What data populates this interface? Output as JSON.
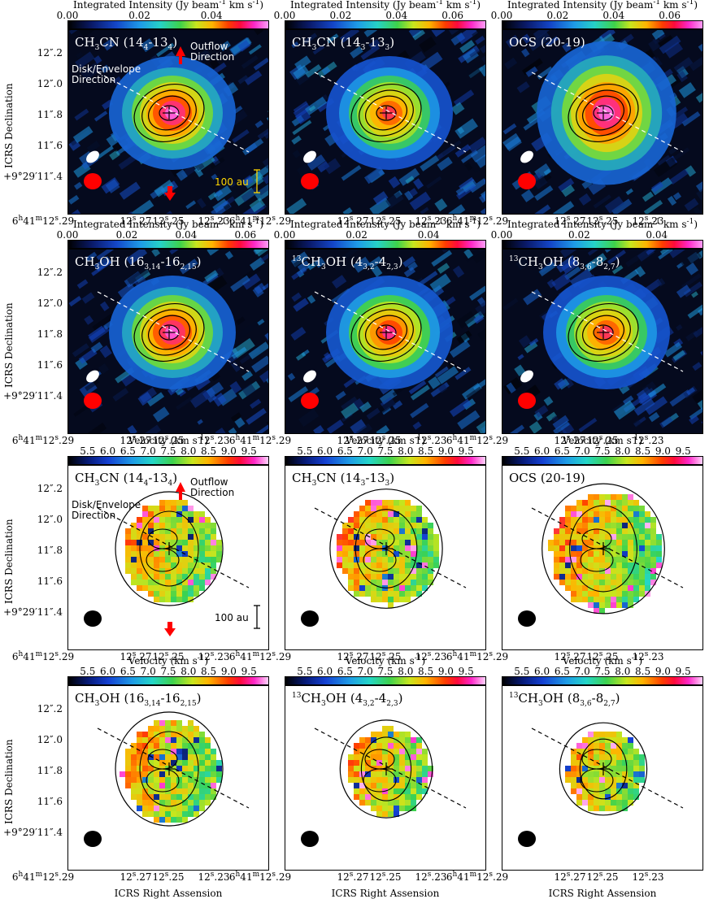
{
  "figure": {
    "colorbar_intensity_title": "Integrated Intensity (Jy beam-1 km s-1)",
    "colorbar_velocity_title": "Velocity (km s-1)",
    "xlabel": "ICRS Right Assension",
    "ylabel": "ICRS Declination",
    "x_ticks": [
      "6h41m12s.29",
      "12s.27",
      "12s.25",
      "12s.23"
    ],
    "y_ticks_top": [
      "12″.2",
      "12″.0",
      "11″.8",
      "11″.6",
      "+9°29′11″.4"
    ],
    "annotations": {
      "outflow": "Outflow Direction",
      "disk": "Disk/Envelope Direction",
      "scale": "100 au"
    },
    "colors": {
      "intensity_cmap": [
        "#000000",
        "#1446c8",
        "#1e9be6",
        "#3ed24a",
        "#c8e61e",
        "#ffb400",
        "#ff3c00",
        "#ff28c8",
        "#ff9cf4"
      ],
      "velocity_cmap": [
        "#000000",
        "#1440d2",
        "#24d6c8",
        "#3cd24e",
        "#c8e61e",
        "#ffb400",
        "#ff3c00",
        "#ff28c8",
        "#ffd2fa"
      ],
      "beam_synth": "#ff0000",
      "arrow": "#ff0000"
    }
  },
  "chart_data": [
    {
      "type": "heatmap",
      "panel": "moment0",
      "title": "CH3CN (144-134)",
      "colorbar": {
        "label": "Integrated Intensity (Jy beam-1 km s-1)",
        "ticks": [
          0.0,
          0.02,
          0.04
        ],
        "range": [
          0.0,
          0.056
        ]
      },
      "peak_intensity": 0.05,
      "extent": "0.5 x 0.45"
    },
    {
      "type": "heatmap",
      "panel": "moment0",
      "title": "CH3CN (143-133)",
      "colorbar": {
        "label": "Integrated Intensity (Jy beam-1 km s-1)",
        "ticks": [
          0.0,
          0.02,
          0.04,
          0.06
        ],
        "range": [
          0.0,
          0.072
        ]
      },
      "peak_intensity": 0.055,
      "extent": "0.45 x 0.42"
    },
    {
      "type": "heatmap",
      "panel": "moment0",
      "title": "OCS (20-19)",
      "colorbar": {
        "label": "Integrated Intensity (Jy beam-1 km s-1)",
        "ticks": [
          0.0,
          0.02,
          0.04,
          0.06
        ],
        "range": [
          0.0,
          0.072
        ]
      },
      "peak_intensity": 0.065,
      "extent": "0.5 x 0.5"
    },
    {
      "type": "heatmap",
      "panel": "moment0",
      "title": "CH3OH (163,14-162,15)",
      "colorbar": {
        "label": "Integrated Intensity (Jy beam-1 km s-1)",
        "ticks": [
          0.0,
          0.02,
          0.04,
          0.06
        ],
        "range": [
          0.0,
          0.068
        ]
      },
      "peak_intensity": 0.06,
      "extent": "0.45 x 0.4"
    },
    {
      "type": "heatmap",
      "panel": "moment0",
      "title": "13CH3OH (43,2-42,3)",
      "colorbar": {
        "label": "Integrated Intensity (Jy beam-1 km s-1)",
        "ticks": [
          0.0,
          0.02,
          0.04
        ],
        "range": [
          0.0,
          0.056
        ]
      },
      "peak_intensity": 0.045,
      "extent": "0.42 x 0.38"
    },
    {
      "type": "heatmap",
      "panel": "moment0",
      "title": "13CH3OH (83,6-82,7)",
      "colorbar": {
        "label": "Integrated Intensity (Jy beam-1 km s-1)",
        "ticks": [
          0.0,
          0.02,
          0.04
        ],
        "range": [
          0.0,
          0.052
        ]
      },
      "peak_intensity": 0.04,
      "extent": "0.38 x 0.34"
    },
    {
      "type": "heatmap",
      "panel": "moment1",
      "title": "CH3CN (144-134)",
      "colorbar": {
        "label": "Velocity (km s-1)",
        "ticks": [
          5.5,
          6.0,
          6.5,
          7.0,
          7.5,
          8.0,
          8.5,
          9.0,
          9.5
        ],
        "range": [
          5.0,
          10.0
        ]
      }
    },
    {
      "type": "heatmap",
      "panel": "moment1",
      "title": "CH3CN (143-133)",
      "colorbar": {
        "label": "Velocity (km s-1)",
        "ticks": [
          5.5,
          6.0,
          6.5,
          7.0,
          7.5,
          8.0,
          8.5,
          9.0,
          9.5
        ],
        "range": [
          5.0,
          10.0
        ]
      }
    },
    {
      "type": "heatmap",
      "panel": "moment1",
      "title": "OCS (20-19)",
      "colorbar": {
        "label": "Velocity (km s-1)",
        "ticks": [
          5.5,
          6.0,
          6.5,
          7.0,
          7.5,
          8.0,
          8.5,
          9.0,
          9.5
        ],
        "range": [
          5.0,
          10.0
        ]
      }
    },
    {
      "type": "heatmap",
      "panel": "moment1",
      "title": "CH3OH (163,14-162,15)",
      "colorbar": {
        "label": "Velocity (km s-1)",
        "ticks": [
          5.5,
          6.0,
          6.5,
          7.0,
          7.5,
          8.0,
          8.5,
          9.0,
          9.5
        ],
        "range": [
          5.0,
          10.0
        ]
      }
    },
    {
      "type": "heatmap",
      "panel": "moment1",
      "title": "13CH3OH (43,2-42,3)",
      "colorbar": {
        "label": "Velocity (km s-1)",
        "ticks": [
          5.5,
          6.0,
          6.5,
          7.0,
          7.5,
          8.0,
          8.5,
          9.0,
          9.5
        ],
        "range": [
          5.0,
          10.0
        ]
      }
    },
    {
      "type": "heatmap",
      "panel": "moment1",
      "title": "13CH3OH (83,6-82,7)",
      "colorbar": {
        "label": "Velocity (km s-1)",
        "ticks": [
          5.5,
          6.0,
          6.5,
          7.0,
          7.5,
          8.0,
          8.5,
          9.0,
          9.5
        ],
        "range": [
          5.0,
          10.0
        ]
      }
    }
  ]
}
